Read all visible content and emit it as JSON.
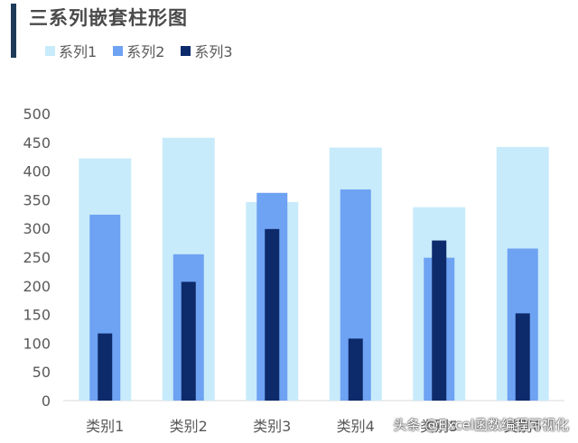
{
  "title": "三系列嵌套柱形图",
  "watermark": "头条 @Excel函数编程可视化",
  "legend": [
    {
      "label": "系列1",
      "color": "#c8ebfb"
    },
    {
      "label": "系列2",
      "color": "#6ea2f2"
    },
    {
      "label": "系列3",
      "color": "#0d2a6b"
    }
  ],
  "chart_data": {
    "type": "bar",
    "title": "三系列嵌套柱形图",
    "categories": [
      "类别1",
      "类别2",
      "类别3",
      "类别4",
      "类别5",
      "类别6"
    ],
    "series": [
      {
        "name": "系列1",
        "values": [
          422,
          458,
          346,
          441,
          337,
          442
        ],
        "color": "#c8ebfb"
      },
      {
        "name": "系列2",
        "values": [
          324,
          255,
          362,
          368,
          249,
          265
        ],
        "color": "#6ea2f2"
      },
      {
        "name": "系列3",
        "values": [
          117,
          207,
          299,
          108,
          279,
          152
        ],
        "color": "#0d2a6b"
      }
    ],
    "ylim": [
      0,
      500
    ],
    "yticks": [
      "0",
      "50",
      "100",
      "150",
      "200",
      "250",
      "300",
      "350",
      "400",
      "450",
      "500"
    ],
    "xlabel": "",
    "ylabel": "",
    "grid": false,
    "legend_position": "top-left"
  }
}
